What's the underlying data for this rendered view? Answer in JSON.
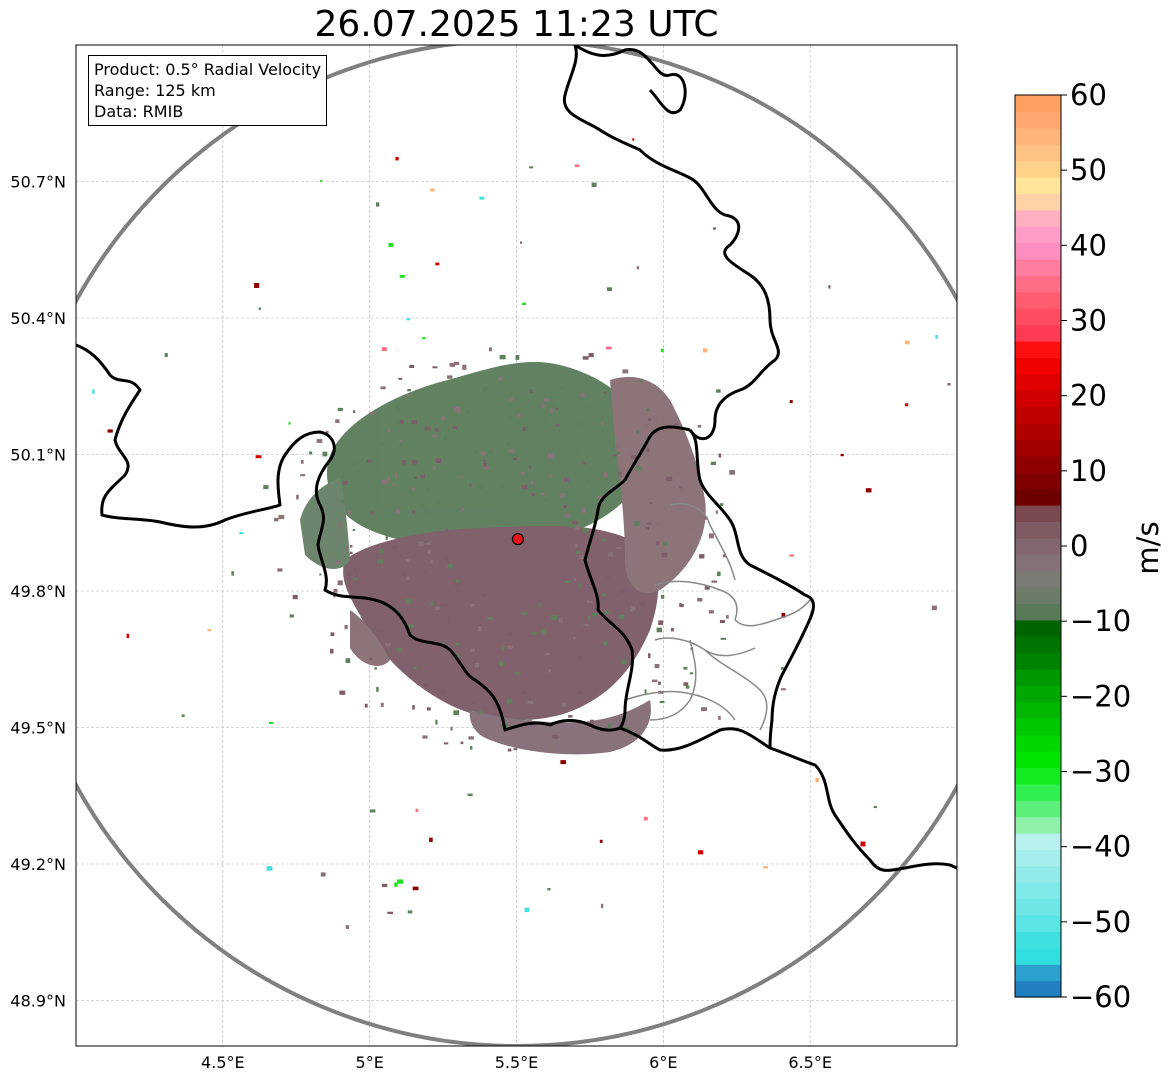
{
  "title": "26.07.2025 11:23 UTC",
  "info": {
    "product": "Product: 0.5° Radial Velocity",
    "range": "Range: 125 km",
    "data": "Data: RMIB"
  },
  "map": {
    "lon_range": [
      4.0,
      7.0
    ],
    "lat_range": [
      48.8,
      51.0
    ],
    "lon_ticks": [
      {
        "value": 4.5,
        "label": "4.5°E"
      },
      {
        "value": 5.0,
        "label": "5°E"
      },
      {
        "value": 5.5,
        "label": "5.5°E"
      },
      {
        "value": 6.0,
        "label": "6°E"
      },
      {
        "value": 6.5,
        "label": "6.5°E"
      }
    ],
    "lat_ticks": [
      {
        "value": 50.7,
        "label": "50.7°N"
      },
      {
        "value": 50.4,
        "label": "50.4°N"
      },
      {
        "value": 50.1,
        "label": "50.1°N"
      },
      {
        "value": 49.8,
        "label": "49.8°N"
      },
      {
        "value": 49.5,
        "label": "49.5°N"
      },
      {
        "value": 49.2,
        "label": "49.2°N"
      },
      {
        "value": 48.9,
        "label": "48.9°N"
      }
    ],
    "radar_site": {
      "lon": 5.505,
      "lat": 49.914
    },
    "range_ring_color": "#808080",
    "border_color": "#000000",
    "gridline_color": "#b0b0b0"
  },
  "colorbar": {
    "unit": "m/s",
    "min": -60,
    "max": 60,
    "ticks": [
      {
        "value": 60,
        "label": "60"
      },
      {
        "value": 50,
        "label": "50"
      },
      {
        "value": 40,
        "label": "40"
      },
      {
        "value": 30,
        "label": "30"
      },
      {
        "value": 20,
        "label": "20"
      },
      {
        "value": 10,
        "label": "10"
      },
      {
        "value": 0,
        "label": "0"
      },
      {
        "value": -10,
        "label": "−10"
      },
      {
        "value": -20,
        "label": "−20"
      },
      {
        "value": -30,
        "label": "−30"
      },
      {
        "value": -40,
        "label": "−40"
      },
      {
        "value": -50,
        "label": "−50"
      },
      {
        "value": -60,
        "label": "−60"
      }
    ],
    "colors": [
      "#1f7fbf",
      "#2aa0cf",
      "#30dede",
      "#40e0e0",
      "#5ae4e4",
      "#6ee6e6",
      "#7eeaea",
      "#92eaea",
      "#a6eeee",
      "#b8f0f0",
      "#8ff0a8",
      "#5cf07a",
      "#30f050",
      "#10ec20",
      "#00e400",
      "#00d800",
      "#00c800",
      "#00b800",
      "#00a800",
      "#009800",
      "#008400",
      "#007400",
      "#006400",
      "#5a7a5a",
      "#6c7c68",
      "#7c7a74",
      "#857278",
      "#826670",
      "#7e5a62",
      "#7a4a50",
      "#700000",
      "#800000",
      "#900000",
      "#a00000",
      "#b00000",
      "#c00000",
      "#d00000",
      "#e00000",
      "#f00000",
      "#ff1010",
      "#ff3a55",
      "#ff4c60",
      "#ff5c70",
      "#ff6e86",
      "#ff7ea0",
      "#ff8ec0",
      "#ff9cc8",
      "#ffb0c0",
      "#ffd2a8",
      "#ffe49a",
      "#ffd28a",
      "#ffc282",
      "#ffb478",
      "#ffa870",
      "#ffa060"
    ]
  },
  "legend_colors": {
    "main_echo_green": "#5f7f5f",
    "main_echo_maroon": "#7e5e6a",
    "mix_brown": "#8a7276"
  }
}
